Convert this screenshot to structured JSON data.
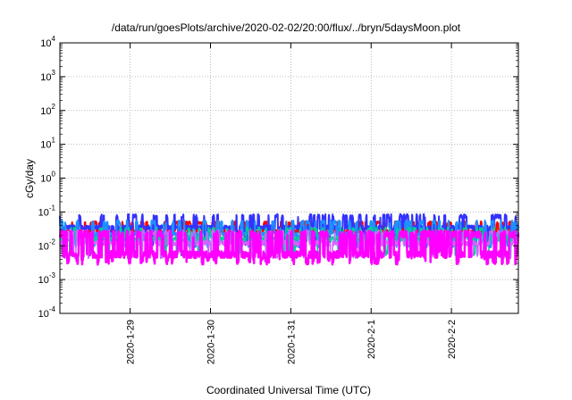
{
  "chart_data": {
    "type": "line",
    "title": "/data/run/goesPlots/archive/2020-02-02/20:00/flux/../bryn/5daysMoon.plot",
    "xlabel": "Coordinated Universal Time (UTC)",
    "ylabel": "cGy/day",
    "y_scale": "log",
    "ylim": [
      0.0001,
      10000
    ],
    "yticks": [
      {
        "base": "10",
        "exp": "-4"
      },
      {
        "base": "10",
        "exp": "-3"
      },
      {
        "base": "10",
        "exp": "-2"
      },
      {
        "base": "10",
        "exp": "-1"
      },
      {
        "base": "10",
        "exp": "0"
      },
      {
        "base": "10",
        "exp": "1"
      },
      {
        "base": "10",
        "exp": "2"
      },
      {
        "base": "10",
        "exp": "3"
      },
      {
        "base": "10",
        "exp": "4"
      }
    ],
    "xlim": [
      "2020-01-28 03:00",
      "2020-02-02 20:00"
    ],
    "xticks": [
      {
        "label": "2020-1-29",
        "t": "2020-01-29 00:00"
      },
      {
        "label": "2020-1-30",
        "t": "2020-01-30 00:00"
      },
      {
        "label": "2020-1-31",
        "t": "2020-01-31 00:00"
      },
      {
        "label": "2020-2-1",
        "t": "2020-02-01 00:00"
      },
      {
        "label": "2020-2-2",
        "t": "2020-02-02 00:00"
      }
    ],
    "grid": true,
    "series": [
      {
        "color": "#ff0000",
        "base": 0.027,
        "spike": 0.048,
        "spike_prob": 0.25,
        "dip": 0.022,
        "noise": 0.08,
        "width": 2
      },
      {
        "color": "#3333ff",
        "base": 0.035,
        "spike": 0.075,
        "spike_prob": 0.2,
        "dip": 0.012,
        "noise": 0.12,
        "width": 2
      },
      {
        "color": "#1e90ff",
        "base": 0.022,
        "spike": 0.05,
        "spike_prob": 0.2,
        "dip": 0.01,
        "noise": 0.1,
        "width": 2
      },
      {
        "color": "#00cc99",
        "base": 0.016,
        "spike": 0.03,
        "spike_prob": 0.2,
        "dip": 0.006,
        "noise": 0.15,
        "width": 1.5
      },
      {
        "color": "#cc66ff",
        "base": 0.012,
        "spike": 0.025,
        "spike_prob": 0.2,
        "dip": 0.005,
        "noise": 0.15,
        "width": 1.5
      },
      {
        "color": "#ff00ff",
        "base": 0.0055,
        "spike": 0.022,
        "spike_prob": 0.35,
        "dip": 0.0035,
        "noise": 0.2,
        "width": 2.5
      }
    ]
  }
}
